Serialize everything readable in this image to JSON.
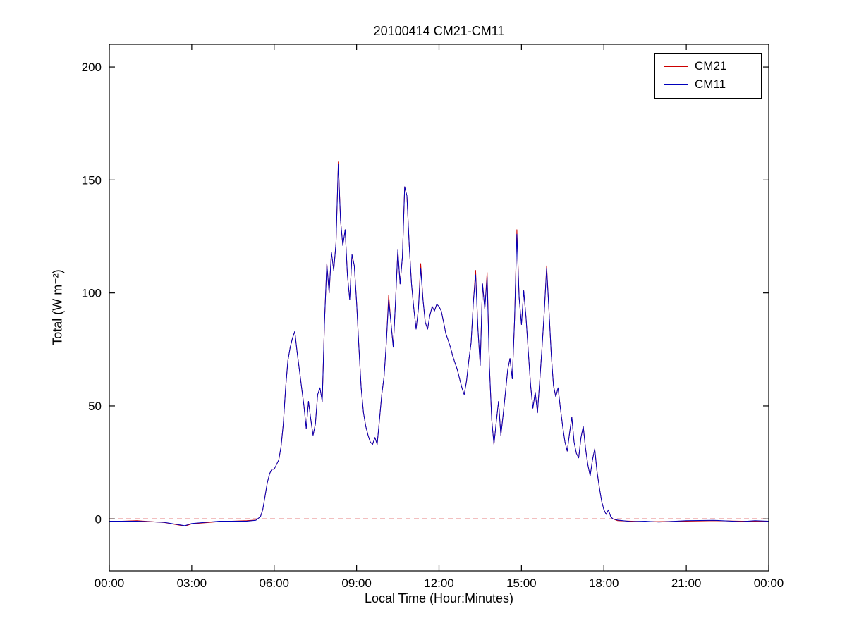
{
  "chart_data": {
    "type": "line",
    "title": "20100414 CM21-CM11",
    "xlabel": "Local Time (Hour:Minutes)",
    "ylabel": "Total (W m⁻²)",
    "xlim_hours": [
      0,
      24
    ],
    "ylim": [
      -23,
      210
    ],
    "grid": false,
    "legend_position": "top-right",
    "xticks": {
      "hours": [
        0,
        3,
        6,
        9,
        12,
        15,
        18,
        21,
        24
      ],
      "labels": [
        "00:00",
        "03:00",
        "06:00",
        "09:00",
        "12:00",
        "15:00",
        "18:00",
        "21:00",
        "00:00"
      ]
    },
    "yticks": {
      "values": [
        0,
        50,
        100,
        150,
        200
      ],
      "labels": [
        "0",
        "50",
        "100",
        "150",
        "200"
      ]
    },
    "zero_line": {
      "y": 0,
      "color": "#cc0000",
      "dashed": true
    },
    "x_hours": [
      0,
      1,
      2,
      2.75,
      3,
      4,
      5,
      5.3333,
      5.5,
      5.5833,
      5.6667,
      5.75,
      5.8333,
      5.9167,
      6,
      6.0833,
      6.1667,
      6.25,
      6.3333,
      6.4167,
      6.5,
      6.5833,
      6.6667,
      6.75,
      6.8333,
      6.9167,
      7,
      7.0833,
      7.1667,
      7.25,
      7.3333,
      7.4167,
      7.5,
      7.5833,
      7.6667,
      7.75,
      7.8333,
      7.9167,
      8,
      8.0833,
      8.1667,
      8.25,
      8.3333,
      8.4167,
      8.5,
      8.5833,
      8.6667,
      8.75,
      8.8333,
      8.9167,
      9,
      9.0833,
      9.1667,
      9.25,
      9.3333,
      9.4167,
      9.5,
      9.5833,
      9.6667,
      9.75,
      9.8333,
      9.9167,
      10,
      10.0833,
      10.1667,
      10.25,
      10.3333,
      10.4167,
      10.5,
      10.5833,
      10.6667,
      10.75,
      10.8333,
      10.9167,
      11,
      11.0833,
      11.1667,
      11.25,
      11.3333,
      11.4167,
      11.5,
      11.5833,
      11.6667,
      11.75,
      11.8333,
      11.9167,
      12,
      12.0833,
      12.1667,
      12.25,
      12.3333,
      12.4167,
      12.5,
      12.5833,
      12.6667,
      12.75,
      12.8333,
      12.9167,
      13,
      13.0833,
      13.1667,
      13.25,
      13.3333,
      13.4167,
      13.5,
      13.5833,
      13.6667,
      13.75,
      13.8333,
      13.9167,
      14,
      14.0833,
      14.1667,
      14.25,
      14.3333,
      14.4167,
      14.5,
      14.5833,
      14.6667,
      14.75,
      14.8333,
      14.9167,
      15,
      15.0833,
      15.1667,
      15.25,
      15.3333,
      15.4167,
      15.5,
      15.5833,
      15.6667,
      15.75,
      15.8333,
      15.9167,
      16,
      16.0833,
      16.1667,
      16.25,
      16.3333,
      16.4167,
      16.5,
      16.5833,
      16.6667,
      16.75,
      16.8333,
      16.9167,
      17,
      17.0833,
      17.1667,
      17.25,
      17.3333,
      17.4167,
      17.5,
      17.5833,
      17.6667,
      17.75,
      17.8333,
      17.9167,
      18,
      18.0833,
      18.1667,
      18.25,
      18.3333,
      18.5,
      19,
      19.5,
      20,
      21,
      22,
      23,
      23.5,
      24
    ],
    "series": [
      {
        "name": "CM21",
        "color": "#cc0000",
        "values": [
          -1.2,
          -0.8,
          -1.6,
          -3.2,
          -2.2,
          -1.2,
          -0.8,
          -0.5,
          1,
          4,
          10,
          16,
          20,
          22,
          22,
          24,
          26,
          32,
          42,
          58,
          70,
          76,
          80,
          83,
          74,
          66,
          58,
          50,
          40,
          52,
          44,
          37,
          42,
          55,
          58,
          52,
          88,
          113,
          100,
          118,
          110,
          122,
          158,
          132,
          121,
          128,
          108,
          97,
          117,
          112,
          96,
          76,
          58,
          47,
          41,
          37,
          34,
          33,
          36,
          33,
          44,
          55,
          63,
          78,
          99,
          87,
          76,
          96,
          119,
          104,
          116,
          147,
          143,
          121,
          104,
          93,
          84,
          93,
          113,
          97,
          87,
          84,
          90,
          94,
          92,
          95,
          94,
          92,
          87,
          82,
          79,
          76,
          72,
          69,
          66,
          62,
          58,
          55,
          61,
          70,
          78,
          96,
          110,
          84,
          68,
          104,
          93,
          109,
          68,
          44,
          33,
          43,
          52,
          37,
          46,
          56,
          66,
          71,
          62,
          88,
          128,
          98,
          86,
          101,
          89,
          74,
          59,
          49,
          56,
          47,
          61,
          76,
          92,
          112,
          93,
          73,
          59,
          54,
          58,
          49,
          41,
          34,
          30,
          38,
          45,
          34,
          29,
          27,
          36,
          41,
          31,
          24,
          19,
          26,
          31,
          21,
          14,
          8,
          4,
          2,
          4,
          1,
          0,
          -0.8,
          -1,
          -1.2,
          -1.2,
          -1,
          -0.8,
          -1,
          -1,
          -1.2
        ]
      },
      {
        "name": "CM11",
        "color": "#0000bb",
        "values": [
          -1,
          -1,
          -1.5,
          -3,
          -2,
          -1,
          -1,
          -0.6,
          1,
          4,
          10,
          16,
          20,
          22,
          22,
          24,
          26,
          32,
          42,
          58,
          70,
          76,
          80,
          83,
          74,
          66,
          58,
          50,
          40,
          52,
          44,
          37,
          42,
          55,
          58,
          52,
          88,
          113,
          100,
          118,
          110,
          122,
          157,
          132,
          121,
          128,
          108,
          97,
          117,
          112,
          96,
          76,
          58,
          47,
          41,
          37,
          34,
          33,
          36,
          33,
          44,
          55,
          63,
          78,
          97,
          87,
          76,
          96,
          119,
          104,
          116,
          147,
          143,
          121,
          104,
          93,
          84,
          93,
          111,
          97,
          87,
          84,
          90,
          94,
          92,
          95,
          94,
          92,
          87,
          82,
          79,
          76,
          72,
          69,
          66,
          62,
          58,
          55,
          61,
          70,
          78,
          96,
          108,
          84,
          68,
          104,
          93,
          107,
          68,
          44,
          33,
          43,
          52,
          37,
          46,
          56,
          66,
          71,
          62,
          88,
          126,
          98,
          86,
          101,
          89,
          74,
          59,
          49,
          56,
          47,
          61,
          76,
          92,
          111,
          93,
          73,
          59,
          54,
          58,
          49,
          41,
          34,
          30,
          38,
          45,
          34,
          29,
          27,
          36,
          41,
          31,
          24,
          19,
          26,
          31,
          21,
          14,
          8,
          4,
          2,
          4,
          1,
          0,
          -0.5,
          -1.2,
          -1,
          -1.4,
          -0.8,
          -0.6,
          -1.2,
          -0.8,
          -1
        ]
      }
    ]
  }
}
